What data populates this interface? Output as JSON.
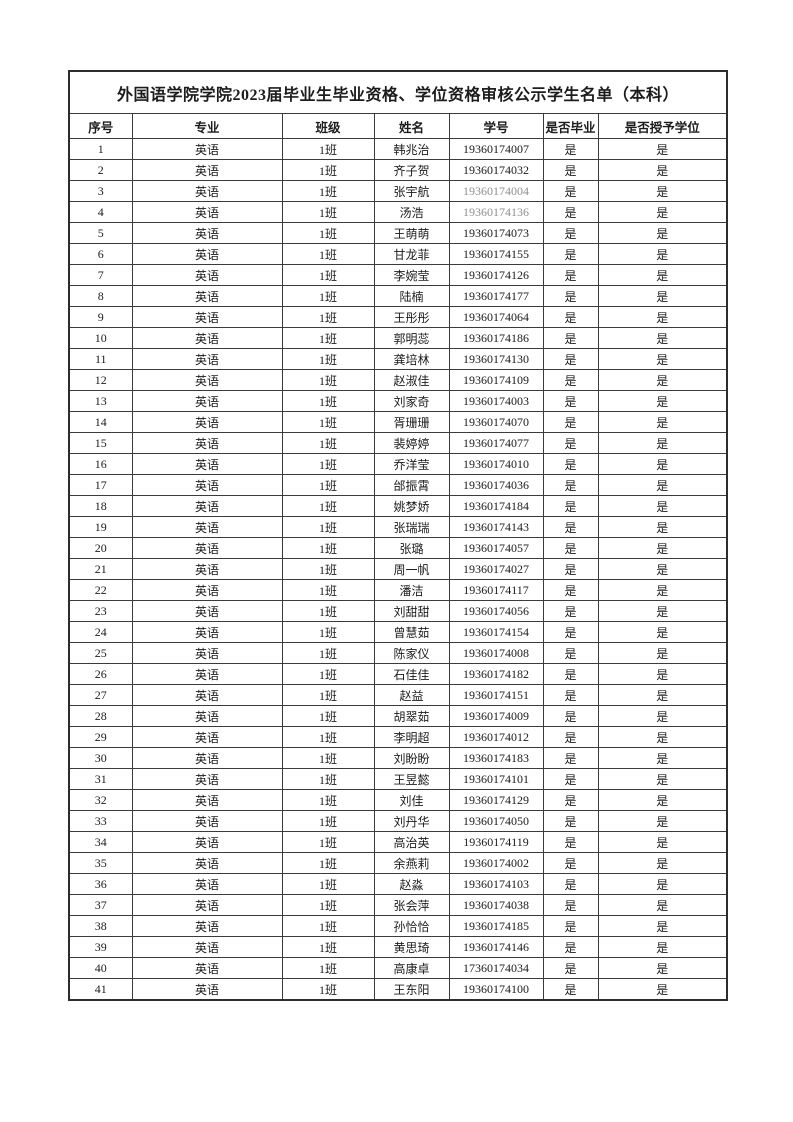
{
  "document": {
    "title": "外国语学院学院2023届毕业生毕业资格、学位资格审核公示学生名单（本科）"
  },
  "table": {
    "headers": [
      "序号",
      "专业",
      "班级",
      "姓名",
      "学号",
      "是否毕业",
      "是否授予学位"
    ],
    "muted_id_rows": [
      3,
      4
    ],
    "rows": [
      [
        "1",
        "英语",
        "1班",
        "韩兆治",
        "19360174007",
        "是",
        "是"
      ],
      [
        "2",
        "英语",
        "1班",
        "齐子贺",
        "19360174032",
        "是",
        "是"
      ],
      [
        "3",
        "英语",
        "1班",
        "张宇航",
        "19360174004",
        "是",
        "是"
      ],
      [
        "4",
        "英语",
        "1班",
        "汤浩",
        "19360174136",
        "是",
        "是"
      ],
      [
        "5",
        "英语",
        "1班",
        "王萌萌",
        "19360174073",
        "是",
        "是"
      ],
      [
        "6",
        "英语",
        "1班",
        "甘龙菲",
        "19360174155",
        "是",
        "是"
      ],
      [
        "7",
        "英语",
        "1班",
        "李婉莹",
        "19360174126",
        "是",
        "是"
      ],
      [
        "8",
        "英语",
        "1班",
        "陆楠",
        "19360174177",
        "是",
        "是"
      ],
      [
        "9",
        "英语",
        "1班",
        "王彤彤",
        "19360174064",
        "是",
        "是"
      ],
      [
        "10",
        "英语",
        "1班",
        "郭明蕊",
        "19360174186",
        "是",
        "是"
      ],
      [
        "11",
        "英语",
        "1班",
        "龚培林",
        "19360174130",
        "是",
        "是"
      ],
      [
        "12",
        "英语",
        "1班",
        "赵淑佳",
        "19360174109",
        "是",
        "是"
      ],
      [
        "13",
        "英语",
        "1班",
        "刘家奇",
        "19360174003",
        "是",
        "是"
      ],
      [
        "14",
        "英语",
        "1班",
        "胥珊珊",
        "19360174070",
        "是",
        "是"
      ],
      [
        "15",
        "英语",
        "1班",
        "裴婷婷",
        "19360174077",
        "是",
        "是"
      ],
      [
        "16",
        "英语",
        "1班",
        "乔洋莹",
        "19360174010",
        "是",
        "是"
      ],
      [
        "17",
        "英语",
        "1班",
        "邰振霄",
        "19360174036",
        "是",
        "是"
      ],
      [
        "18",
        "英语",
        "1班",
        "姚梦娇",
        "19360174184",
        "是",
        "是"
      ],
      [
        "19",
        "英语",
        "1班",
        "张瑞瑞",
        "19360174143",
        "是",
        "是"
      ],
      [
        "20",
        "英语",
        "1班",
        "张璐",
        "19360174057",
        "是",
        "是"
      ],
      [
        "21",
        "英语",
        "1班",
        "周一帆",
        "19360174027",
        "是",
        "是"
      ],
      [
        "22",
        "英语",
        "1班",
        "潘洁",
        "19360174117",
        "是",
        "是"
      ],
      [
        "23",
        "英语",
        "1班",
        "刘甜甜",
        "19360174056",
        "是",
        "是"
      ],
      [
        "24",
        "英语",
        "1班",
        "曾慧茹",
        "19360174154",
        "是",
        "是"
      ],
      [
        "25",
        "英语",
        "1班",
        "陈家仪",
        "19360174008",
        "是",
        "是"
      ],
      [
        "26",
        "英语",
        "1班",
        "石佳佳",
        "19360174182",
        "是",
        "是"
      ],
      [
        "27",
        "英语",
        "1班",
        "赵益",
        "19360174151",
        "是",
        "是"
      ],
      [
        "28",
        "英语",
        "1班",
        "胡翠茹",
        "19360174009",
        "是",
        "是"
      ],
      [
        "29",
        "英语",
        "1班",
        "李明超",
        "19360174012",
        "是",
        "是"
      ],
      [
        "30",
        "英语",
        "1班",
        "刘盼盼",
        "19360174183",
        "是",
        "是"
      ],
      [
        "31",
        "英语",
        "1班",
        "王昱懿",
        "19360174101",
        "是",
        "是"
      ],
      [
        "32",
        "英语",
        "1班",
        "刘佳",
        "19360174129",
        "是",
        "是"
      ],
      [
        "33",
        "英语",
        "1班",
        "刘丹华",
        "19360174050",
        "是",
        "是"
      ],
      [
        "34",
        "英语",
        "1班",
        "高治英",
        "19360174119",
        "是",
        "是"
      ],
      [
        "35",
        "英语",
        "1班",
        "余燕莉",
        "19360174002",
        "是",
        "是"
      ],
      [
        "36",
        "英语",
        "1班",
        "赵淼",
        "19360174103",
        "是",
        "是"
      ],
      [
        "37",
        "英语",
        "1班",
        "张会萍",
        "19360174038",
        "是",
        "是"
      ],
      [
        "38",
        "英语",
        "1班",
        "孙恰恰",
        "19360174185",
        "是",
        "是"
      ],
      [
        "39",
        "英语",
        "1班",
        "黄思琦",
        "19360174146",
        "是",
        "是"
      ],
      [
        "40",
        "英语",
        "1班",
        "高康卓",
        "17360174034",
        "是",
        "是"
      ],
      [
        "41",
        "英语",
        "1班",
        "王东阳",
        "19360174100",
        "是",
        "是"
      ]
    ]
  },
  "colors": {
    "border": "#3b3b3b",
    "text": "#1c1c1c",
    "muted_id": "#8f8f8f",
    "page_background": "#ffffff"
  }
}
